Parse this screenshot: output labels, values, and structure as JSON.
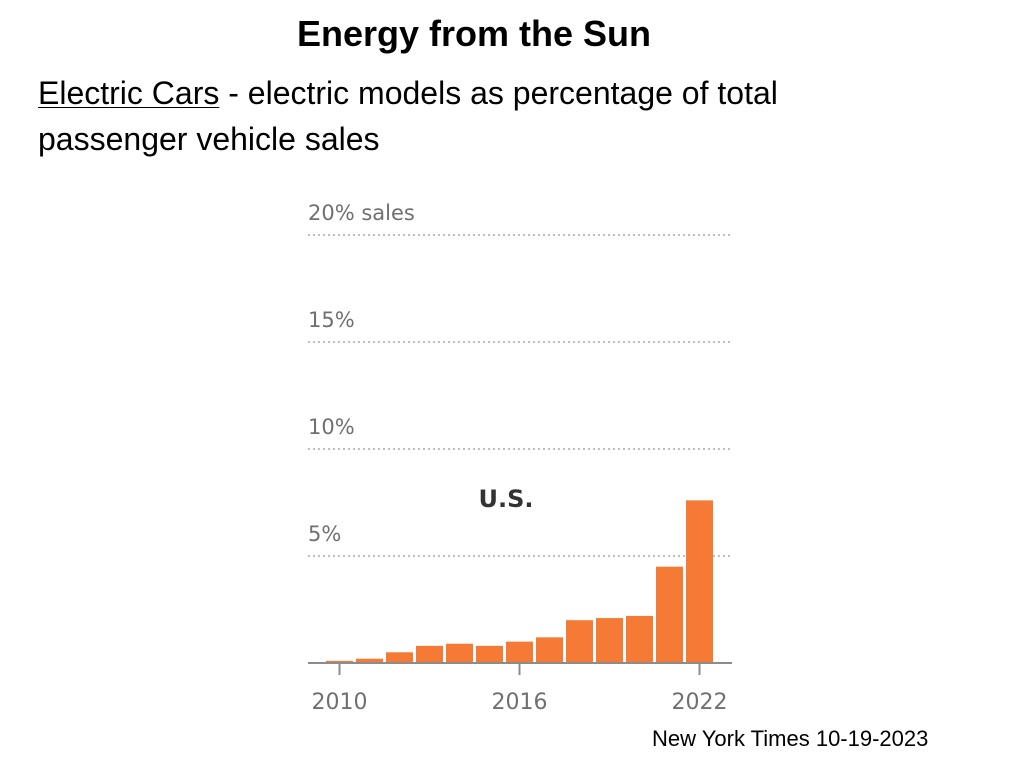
{
  "slide": {
    "title": "Energy from the Sun",
    "subtitle_link": "Electric Cars",
    "subtitle_rest": "  - electric models as percentage of total passenger vehicle sales",
    "credit": "New York Times 10-19-2023"
  },
  "colors": {
    "bar": "#F47A35",
    "grid": "#bfbfbf",
    "axis": "#8c8c8c",
    "tick_text": "#707070",
    "country_text": "#333333"
  },
  "chart_data": {
    "type": "bar",
    "title": "",
    "annotation": "U.S.",
    "xlabel": "",
    "ylabel": "",
    "ylim": [
      0,
      20
    ],
    "grid": true,
    "categories": [
      2010,
      2011,
      2012,
      2013,
      2014,
      2015,
      2016,
      2017,
      2018,
      2019,
      2020,
      2021,
      2022
    ],
    "values": [
      0.1,
      0.2,
      0.5,
      0.8,
      0.9,
      0.8,
      1.0,
      1.2,
      2.0,
      2.1,
      2.2,
      4.5,
      7.6
    ],
    "y_ticks": [
      5,
      10,
      15,
      20
    ],
    "y_tick_labels": [
      "5%",
      "10%",
      "15%",
      "20% sales"
    ],
    "x_tick_labels": [
      "2010",
      "2016",
      "2022"
    ],
    "x_tick_values": [
      2010,
      2016,
      2022
    ]
  }
}
